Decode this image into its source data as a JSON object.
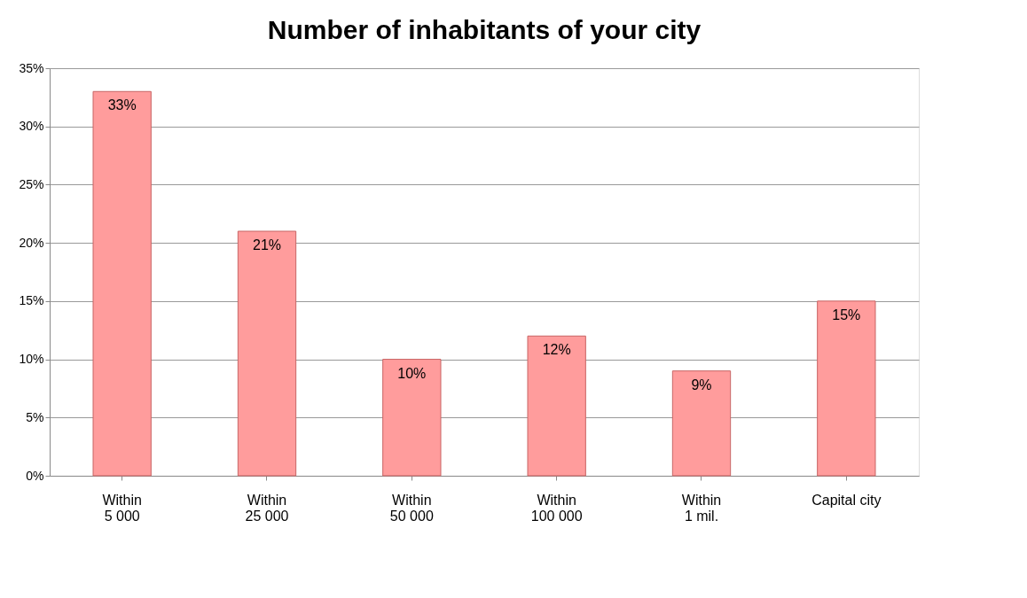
{
  "chart_data": {
    "type": "bar",
    "title": "Number of inhabitants of your city",
    "categories": [
      "Within\n5 000",
      "Within\n25 000",
      "Within\n50 000",
      "Within\n100 000",
      "Within\n1 mil.",
      "Capital city"
    ],
    "values": [
      33,
      21,
      10,
      12,
      9,
      15
    ],
    "color": "#ff9c9c",
    "ylim": [
      0,
      35
    ],
    "yticks": [
      {
        "value": 0,
        "label": "0%"
      },
      {
        "value": 5,
        "label": "5%"
      },
      {
        "value": 10,
        "label": "10%"
      },
      {
        "value": 15,
        "label": "15%"
      },
      {
        "value": 20,
        "label": "20%"
      },
      {
        "value": 25,
        "label": "25%"
      },
      {
        "value": 30,
        "label": "30%"
      },
      {
        "value": 35,
        "label": "35%"
      }
    ],
    "value_labels": [
      "33%",
      "21%",
      "10%",
      "12%",
      "9%",
      "15%"
    ],
    "grid": "y"
  }
}
